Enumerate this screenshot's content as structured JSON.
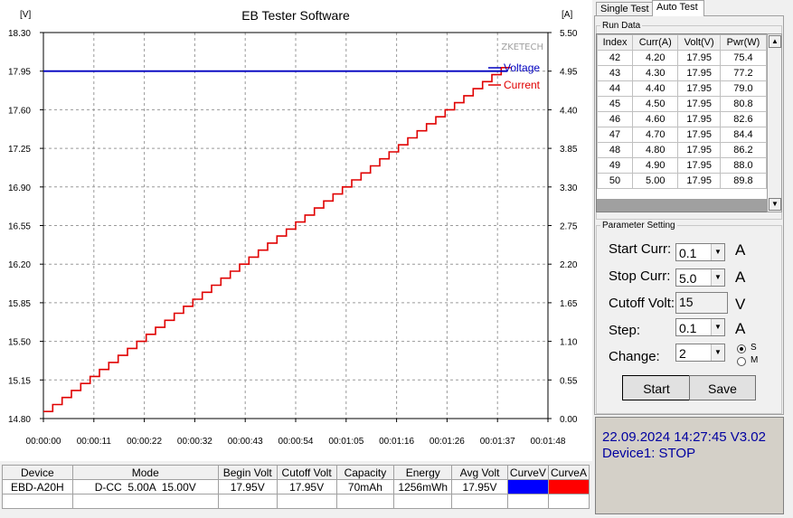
{
  "chart_data": {
    "type": "line",
    "title": "EB Tester Software",
    "brand": "ZKETECH",
    "left_unit": "[V]",
    "right_unit": "[A]",
    "y_left_ticks": [
      "18.30",
      "17.95",
      "17.60",
      "17.25",
      "16.90",
      "16.55",
      "16.20",
      "15.85",
      "15.50",
      "15.15",
      "14.80"
    ],
    "y_right_ticks": [
      "5.50",
      "4.95",
      "4.40",
      "3.85",
      "3.30",
      "2.75",
      "2.20",
      "1.65",
      "1.10",
      "0.55",
      "0.00"
    ],
    "x_ticks": [
      "00:00:00",
      "00:00:11",
      "00:00:22",
      "00:00:32",
      "00:00:43",
      "00:00:54",
      "00:01:05",
      "00:01:16",
      "00:01:26",
      "00:01:37",
      "00:01:48"
    ],
    "ylim_left": [
      14.8,
      18.3
    ],
    "ylim_right": [
      0.0,
      5.5
    ],
    "x_range_seconds": [
      0,
      108
    ],
    "grid": true,
    "legend_position": "top-right",
    "series": [
      {
        "name": "Voltage",
        "axis": "left",
        "color": "#0000c0",
        "kind": "constant",
        "value": 17.95
      },
      {
        "name": "Current",
        "axis": "right",
        "color": "#e00000",
        "kind": "staircase",
        "start": 0.1,
        "stop": 5.0,
        "step": 0.1,
        "step_seconds": 2
      }
    ]
  },
  "summary_table": {
    "headers": [
      "Device",
      "Mode",
      "Begin Volt",
      "Cutoff Volt",
      "Capacity",
      "Energy",
      "Avg Volt",
      "CurveV",
      "CurveA"
    ],
    "row": [
      "EBD-A20H",
      "D-CC  5.00A  15.00V",
      "17.95V",
      "17.95V",
      "70mAh",
      "1256mWh",
      "17.95V",
      "",
      ""
    ],
    "curve_colors": [
      "#0000ff",
      "#ff0000"
    ]
  },
  "tabs": [
    "Single Test",
    "Auto Test"
  ],
  "active_tab": "Auto Test",
  "run_data": {
    "title": "Run Data",
    "headers": [
      "Index",
      "Curr(A)",
      "Volt(V)",
      "Pwr(W)"
    ],
    "rows": [
      [
        "42",
        "4.20",
        "17.95",
        "75.4"
      ],
      [
        "43",
        "4.30",
        "17.95",
        "77.2"
      ],
      [
        "44",
        "4.40",
        "17.95",
        "79.0"
      ],
      [
        "45",
        "4.50",
        "17.95",
        "80.8"
      ],
      [
        "46",
        "4.60",
        "17.95",
        "82.6"
      ],
      [
        "47",
        "4.70",
        "17.95",
        "84.4"
      ],
      [
        "48",
        "4.80",
        "17.95",
        "86.2"
      ],
      [
        "49",
        "4.90",
        "17.95",
        "88.0"
      ],
      [
        "50",
        "5.00",
        "17.95",
        "89.8"
      ]
    ]
  },
  "params": {
    "title": "Parameter Setting",
    "start_curr_label": "Start Curr:",
    "start_curr": "0.1",
    "stop_curr_label": "Stop Curr:",
    "stop_curr": "5.0",
    "cutoff_volt_label": "Cutoff Volt:",
    "cutoff_volt": "15",
    "step_label": "Step:",
    "step": "0.1",
    "change_label": "Change:",
    "change": "2",
    "unit_a": "A",
    "unit_v": "V",
    "radio_s": "S",
    "radio_m": "M",
    "start_button": "Start",
    "save_button": "Save"
  },
  "status": {
    "datetime": "22.09.2024 14:27:45  V3.02",
    "device": "Device1: STOP"
  }
}
